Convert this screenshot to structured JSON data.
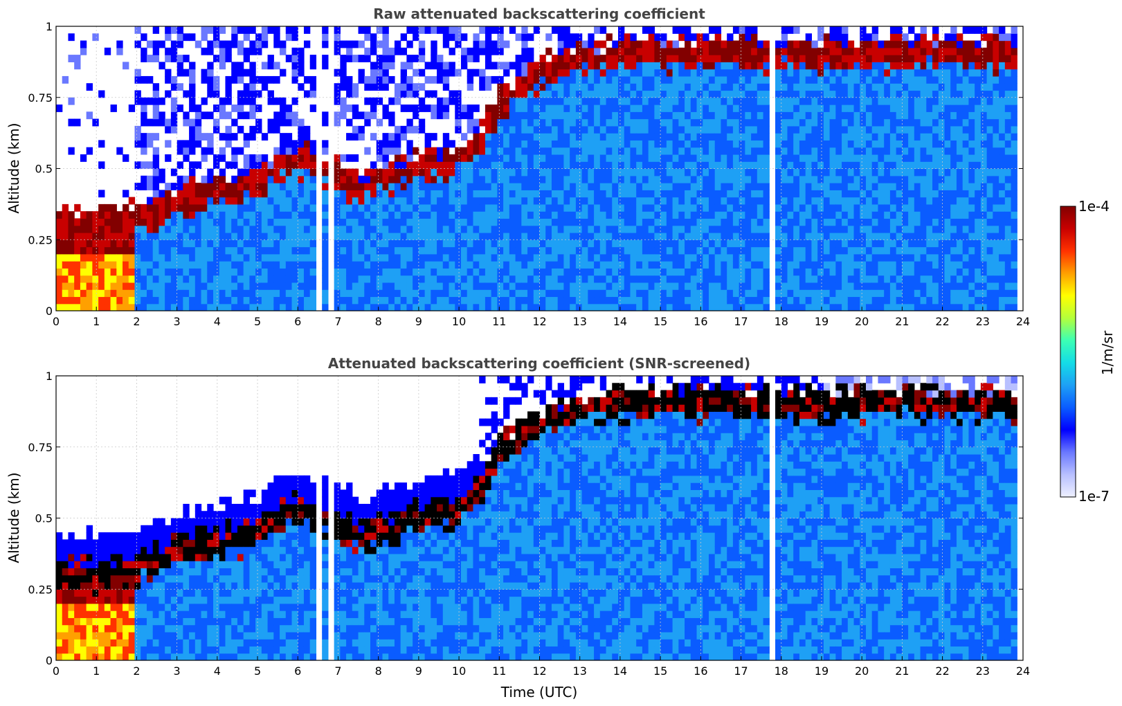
{
  "chart_data": [
    {
      "type": "heatmap",
      "title": "Raw attenuated backscattering coefficient",
      "xlabel": "",
      "ylabel": "Altitude (km)",
      "xlim": [
        0,
        24
      ],
      "ylim": [
        0,
        1
      ],
      "xticks": [
        "0",
        "1",
        "2",
        "3",
        "4",
        "5",
        "6",
        "7",
        "8",
        "9",
        "10",
        "11",
        "12",
        "13",
        "14",
        "15",
        "16",
        "17",
        "18",
        "19",
        "20",
        "21",
        "22",
        "23",
        "24"
      ],
      "yticks": [
        "0",
        "0.25",
        "0.5",
        "0.75",
        "1"
      ],
      "grid": true,
      "screened": false,
      "data_end_hour": 23.8,
      "gap_hours": [
        6.0,
        6.3,
        6.55,
        6.8,
        17.8,
        18.6
      ],
      "boundary_layer_top_km": {
        "hours": [
          0,
          1,
          2,
          3,
          4,
          5,
          5.5,
          6,
          7,
          7.5,
          8,
          9,
          10,
          10.5,
          11,
          12,
          13,
          14,
          15
        ],
        "values": [
          0.33,
          0.32,
          0.34,
          0.4,
          0.43,
          0.46,
          0.52,
          0.55,
          0.5,
          0.45,
          0.47,
          0.52,
          0.55,
          0.6,
          0.75,
          0.85,
          0.9,
          0.92,
          0.92
        ]
      }
    },
    {
      "type": "heatmap",
      "title": "Attenuated backscattering coefficient (SNR-screened)",
      "xlabel": "Time (UTC)",
      "ylabel": "Altitude (km)",
      "xlim": [
        0,
        24
      ],
      "ylim": [
        0,
        1
      ],
      "xticks": [
        "0",
        "1",
        "2",
        "3",
        "4",
        "5",
        "6",
        "7",
        "8",
        "9",
        "10",
        "11",
        "12",
        "13",
        "14",
        "15",
        "16",
        "17",
        "18",
        "19",
        "20",
        "21",
        "22",
        "23",
        "24"
      ],
      "yticks": [
        "0",
        "0.25",
        "0.5",
        "0.75",
        "1"
      ],
      "grid": true,
      "screened": true,
      "data_end_hour": 23.8,
      "gap_hours": [
        6.0,
        6.3,
        6.55,
        6.8,
        17.8,
        18.6
      ]
    }
  ],
  "colorbar": {
    "label": "1/m/sr",
    "min_label": "1e-7",
    "max_label": "1e-4",
    "scale": "log",
    "colors": [
      "#eef0ff",
      "#b8c0ff",
      "#6a78ff",
      "#0000ff",
      "#0a5cff",
      "#1ea0f5",
      "#14dce6",
      "#3cffb4",
      "#b4ff3c",
      "#ffff00",
      "#ffa000",
      "#ff3200",
      "#c80000",
      "#820000"
    ]
  }
}
